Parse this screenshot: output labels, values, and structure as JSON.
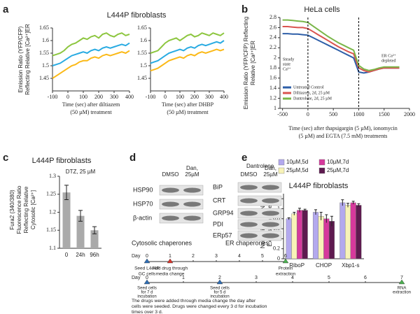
{
  "panel_labels": [
    "a",
    "b",
    "c",
    "d",
    "e"
  ],
  "chart_data": [
    {
      "type": "line",
      "title": "L444P fibroblasts",
      "ylabel": [
        "Emission Ratio (YFP/CFP)",
        "Reflecting Relative [Ca²⁺]ER"
      ],
      "xlabel": [
        "Time (sec) after diltiazem",
        "(50 µM) treatment"
      ],
      "x": [
        -100,
        -75,
        -50,
        -25,
        0,
        25,
        50,
        75,
        100,
        125,
        150,
        175,
        200,
        225,
        250,
        275,
        300,
        325,
        350,
        375,
        400
      ],
      "series": [
        {
          "color": "#8dc63f",
          "values": [
            1.54,
            1.545,
            1.55,
            1.56,
            1.575,
            1.585,
            1.59,
            1.6,
            1.61,
            1.605,
            1.615,
            1.62,
            1.61,
            1.625,
            1.63,
            1.62,
            1.615,
            1.625,
            1.63,
            1.62,
            1.625
          ]
        },
        {
          "color": "#29abe2",
          "values": [
            1.5,
            1.505,
            1.51,
            1.52,
            1.53,
            1.54,
            1.545,
            1.55,
            1.555,
            1.55,
            1.56,
            1.565,
            1.56,
            1.57,
            1.575,
            1.57,
            1.575,
            1.58,
            1.585,
            1.58,
            1.59
          ]
        },
        {
          "color": "#fbb917",
          "values": [
            1.45,
            1.46,
            1.47,
            1.48,
            1.49,
            1.5,
            1.505,
            1.515,
            1.52,
            1.52,
            1.53,
            1.535,
            1.53,
            1.54,
            1.545,
            1.54,
            1.545,
            1.55,
            1.555,
            1.55,
            1.56
          ]
        }
      ],
      "xlim": [
        -100,
        400
      ],
      "xticks": [
        -100,
        0,
        100,
        200,
        300,
        400
      ],
      "ylim": [
        1.4,
        1.65
      ],
      "yticks": [
        1.45,
        1.5,
        1.55,
        1.6,
        1.65
      ]
    },
    {
      "type": "line",
      "xlabel": [
        "Time (sec) after DHBP",
        "(50 µM) treatment"
      ],
      "x": [
        -100,
        -75,
        -50,
        -25,
        0,
        25,
        50,
        75,
        100,
        125,
        150,
        175,
        200,
        225,
        250,
        275,
        300,
        325,
        350,
        375,
        400
      ],
      "series": [
        {
          "color": "#8dc63f",
          "values": [
            1.55,
            1.555,
            1.56,
            1.575,
            1.59,
            1.6,
            1.605,
            1.61,
            1.6,
            1.61,
            1.62,
            1.625,
            1.615,
            1.62,
            1.63,
            1.625,
            1.62,
            1.63,
            1.625,
            1.62,
            1.63
          ]
        },
        {
          "color": "#29abe2",
          "values": [
            1.51,
            1.515,
            1.52,
            1.53,
            1.54,
            1.55,
            1.555,
            1.56,
            1.565,
            1.56,
            1.57,
            1.575,
            1.57,
            1.58,
            1.585,
            1.58,
            1.585,
            1.59,
            1.595,
            1.59,
            1.6
          ]
        },
        {
          "color": "#fbb917",
          "values": [
            1.48,
            1.485,
            1.49,
            1.5,
            1.51,
            1.52,
            1.525,
            1.53,
            1.535,
            1.53,
            1.54,
            1.545,
            1.54,
            1.55,
            1.555,
            1.55,
            1.555,
            1.56,
            1.565,
            1.56,
            1.565
          ]
        }
      ],
      "xlim": [
        -100,
        400
      ],
      "xticks": [
        -100,
        0,
        100,
        200,
        300,
        400
      ],
      "ylim": [
        1.4,
        1.65
      ],
      "yticks": [
        1.45,
        1.5,
        1.55,
        1.6,
        1.65
      ]
    },
    {
      "type": "line",
      "title": "HeLa cells",
      "ylabel": [
        "Emission Ratio (YFP/CFP) Reflecting",
        "Relative [Ca²⁺]ER"
      ],
      "xlabel": [
        "Time (sec) after  thapsigargin (5 µM), ionomycin",
        "(5 µM) and EGTA (7.5 mM) treatments"
      ],
      "x": [
        -500,
        -400,
        -300,
        -200,
        -100,
        0,
        100,
        200,
        300,
        400,
        500,
        600,
        700,
        800,
        900,
        1000,
        1100,
        1200,
        1300,
        1400,
        1500,
        1600,
        1700,
        1800
      ],
      "series": [
        {
          "name": "Untreated Control",
          "color": "#2e5fa8",
          "values": [
            2.48,
            2.48,
            2.47,
            2.47,
            2.46,
            2.45,
            2.4,
            2.35,
            2.3,
            2.25,
            2.2,
            2.15,
            2.1,
            2.05,
            2.0,
            1.72,
            1.7,
            1.72,
            1.75,
            1.78,
            1.8,
            1.8,
            1.8,
            1.8
          ]
        },
        {
          "name": "Diltiazem, 2d, 25 µM",
          "color": "#d9534f",
          "values": [
            2.62,
            2.62,
            2.61,
            2.6,
            2.6,
            2.58,
            2.52,
            2.46,
            2.4,
            2.34,
            2.28,
            2.22,
            2.17,
            2.12,
            2.08,
            1.8,
            1.75,
            1.72,
            1.75,
            1.78,
            1.8,
            1.8,
            1.8,
            1.8
          ]
        },
        {
          "name": "Dantrolene, 2d, 25 µM",
          "color": "#7ab648",
          "values": [
            2.75,
            2.75,
            2.74,
            2.73,
            2.72,
            2.7,
            2.63,
            2.56,
            2.49,
            2.42,
            2.36,
            2.3,
            2.25,
            2.2,
            2.15,
            1.85,
            1.78,
            1.75,
            1.77,
            1.8,
            1.82,
            1.82,
            1.82,
            1.82
          ]
        }
      ],
      "legend": "lower left",
      "vlines": [
        0,
        1000
      ],
      "annotations": [
        [
          "Steady",
          "state",
          "Ca²⁺"
        ],
        [
          "ER Ca²⁺",
          "depleted"
        ]
      ],
      "xlim": [
        -550,
        2000
      ],
      "xticks": [
        -500,
        0,
        500,
        1000,
        1500,
        2000
      ],
      "ylim": [
        1,
        2.8
      ],
      "yticks": [
        1,
        1.2,
        1.4,
        1.6,
        1.8,
        2,
        2.2,
        2.4,
        2.6,
        2.8
      ]
    },
    {
      "type": "bar",
      "title": "L444P fibroblasts",
      "subtitle": "DTZ, 25 µM",
      "ylabel": [
        "Fura2 (340/380)",
        "Fluorescence Ratio",
        "Reflecting Relative",
        "Cytosolic [Ca²⁺]"
      ],
      "categories": [
        "0",
        "24h",
        "96h"
      ],
      "values": [
        1.255,
        1.19,
        1.15
      ],
      "errors": [
        0.02,
        0.015,
        0.01
      ],
      "color": "#aaaaaa",
      "ylim": [
        1.1,
        1.3
      ],
      "yticks": [
        1.1,
        1.15,
        1.2,
        1.25,
        1.3
      ]
    },
    {
      "type": "grouped_bar",
      "title": "L444P fibroblasts",
      "legend_title": "Dantrolene",
      "ylabel": [
        "Normalized mRNA",
        "Expression Level"
      ],
      "categories": [
        "RiboP",
        "CHOP",
        "Xbp1-s"
      ],
      "series": [
        {
          "name": "10µM,5d",
          "color": "#b3a9ee",
          "values": [
            0.8,
            0.93,
            1.12
          ],
          "errors": [
            0.02,
            0.05,
            0.06
          ]
        },
        {
          "name": "25µM,5d",
          "color": "#f8f3b8",
          "values": [
            0.9,
            0.85,
            1.07
          ],
          "errors": [
            0.03,
            0.08,
            0.04
          ]
        },
        {
          "name": "10µM,7d",
          "color": "#d6399c",
          "values": [
            0.97,
            0.8,
            1.12
          ],
          "errors": [
            0.04,
            0.08,
            0.03
          ]
        },
        {
          "name": "25µM,7d",
          "color": "#5e1a4f",
          "values": [
            0.97,
            0.75,
            1.07
          ],
          "errors": [
            0.02,
            0.1,
            0.03
          ]
        }
      ],
      "ylim": [
        0,
        1.3
      ],
      "yticks": [
        0,
        0.2,
        0.4,
        0.6,
        0.8,
        1,
        1.2
      ]
    }
  ],
  "blots": {
    "columns": [
      [
        "DMSO"
      ],
      [
        "Dan,",
        "25µM"
      ]
    ],
    "cytosolic": {
      "rows": [
        "HSP90",
        "HSP70",
        "β-actin"
      ],
      "caption": "Cytosolic chaperones"
    },
    "er": {
      "rows": [
        "BiP",
        "CRT",
        "GRP94",
        "PDI",
        "ERp57"
      ],
      "caption": "ER chaperones"
    }
  },
  "timelines": [
    {
      "label": "Day",
      "days": [
        0,
        1,
        2,
        3,
        4,
        5,
        6
      ],
      "events": [
        {
          "day": 0,
          "color": "#2e6db4",
          "text": [
            "Seed L444P",
            "GC cells"
          ]
        },
        {
          "day": 1,
          "color": "#d9342b",
          "text": [
            "Add drug through",
            "media change"
          ]
        },
        {
          "day": 6,
          "color": "#4caf50",
          "text": [
            "Protein",
            "extraction"
          ]
        }
      ]
    },
    {
      "label": "Day",
      "days": [
        0,
        1,
        2,
        3,
        4,
        5,
        6,
        7
      ],
      "events": [
        {
          "day": 0,
          "color": "#2e6db4",
          "text": [
            "Seed cells",
            "for  7 d",
            "incubation"
          ]
        },
        {
          "day": 2,
          "color": "#2e6db4",
          "text": [
            "Seed cells",
            "for 5 d",
            "incubation"
          ]
        },
        {
          "day": 7,
          "color": "#4caf50",
          "text": [
            "RNA",
            "extraction"
          ]
        }
      ],
      "note": [
        "The drugs were added through media  change the day after",
        "cells were seeded. Drugs were changed every 3 d for incubation",
        "times over 3 d."
      ]
    }
  ]
}
